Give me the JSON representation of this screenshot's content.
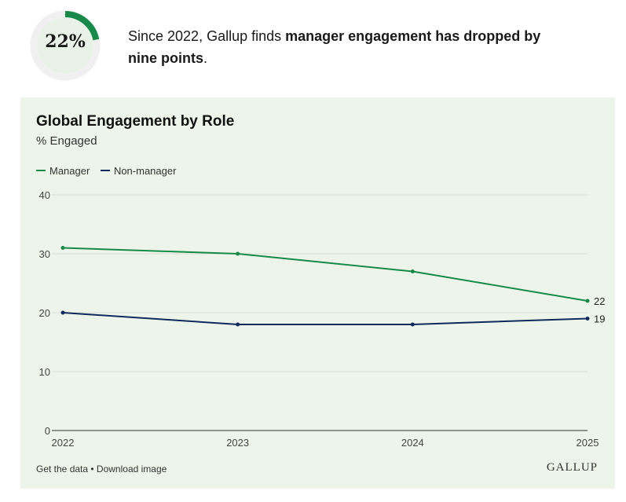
{
  "stat": {
    "value": "22%",
    "fraction": 0.22,
    "accent_color": "#178a4a",
    "text_prefix": "Since 2022, Gallup finds ",
    "text_bold": "manager engagement has dropped by nine points",
    "text_suffix": "."
  },
  "chart_data": {
    "type": "line",
    "title": "Global Engagement by Role",
    "subtitle": "% Engaged",
    "x": [
      "2022",
      "2023",
      "2024",
      "2025"
    ],
    "ylim": [
      0,
      40
    ],
    "yticks": [
      0,
      10,
      20,
      30,
      40
    ],
    "grid": true,
    "legend_position": "top-left",
    "series": [
      {
        "name": "Manager",
        "color": "#178a4a",
        "values": [
          31,
          30,
          27,
          22
        ],
        "end_label": "22"
      },
      {
        "name": "Non-manager",
        "color": "#0f2a5c",
        "values": [
          20,
          18,
          18,
          19
        ],
        "end_label": "19"
      }
    ]
  },
  "footer": {
    "get_data": "Get the data",
    "separator": " • ",
    "download": "Download image",
    "logo": "GALLUP"
  }
}
